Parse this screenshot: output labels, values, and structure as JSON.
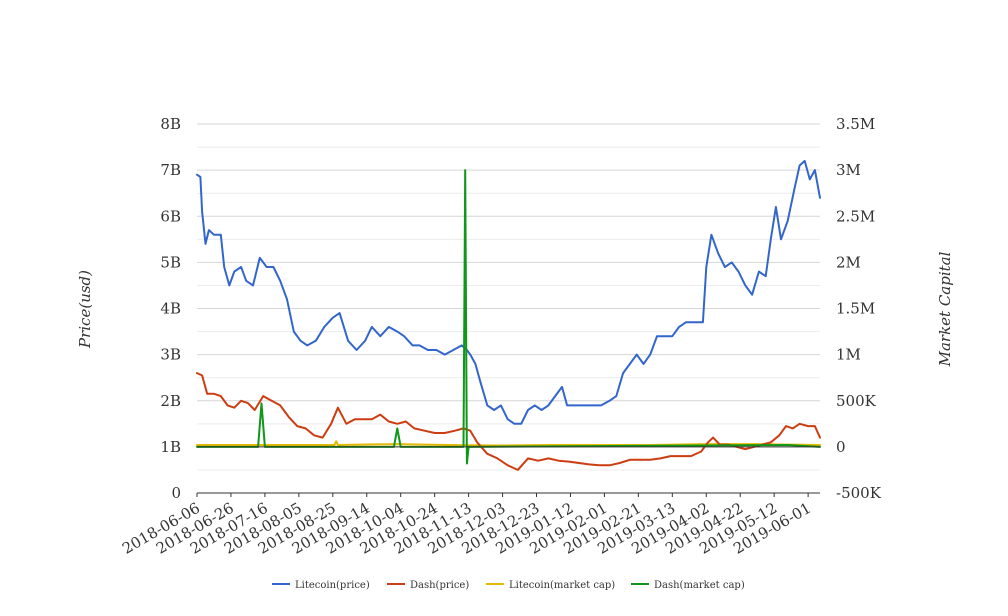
{
  "chart_data": {
    "type": "line",
    "title": "",
    "ylabel_left": "Price(usd)",
    "ylabel_right": "Market Capital",
    "left_axis": {
      "ticks": [
        "0",
        "1B",
        "2B",
        "3B",
        "4B",
        "5B",
        "6B",
        "7B",
        "8B"
      ],
      "tick_values": [
        0,
        1000000000.0,
        2000000000.0,
        3000000000.0,
        4000000000.0,
        5000000000.0,
        6000000000.0,
        7000000000.0,
        8000000000.0
      ],
      "range": [
        0,
        8000000000
      ]
    },
    "right_axis": {
      "ticks": [
        "-500K",
        "0",
        "500K",
        "1M",
        "1.5M",
        "2M",
        "2.5M",
        "3M",
        "3.5M"
      ],
      "tick_values": [
        -500000,
        0,
        500000,
        1000000,
        1500000,
        2000000,
        2500000,
        3000000,
        3500000
      ],
      "range": [
        -500000,
        3500000
      ]
    },
    "x_tick_labels": [
      "2018-06-06",
      "2018-06-26",
      "2018-07-16",
      "2018-08-05",
      "2018-08-25",
      "2018-09-14",
      "2018-10-04",
      "2018-10-24",
      "2018-11-13",
      "2018-12-03",
      "2018-12-23",
      "2019-01-12",
      "2019-02-01",
      "2019-02-21",
      "2019-03-13",
      "2019-04-02",
      "2019-04-22",
      "2019-05-12",
      "2019-06-01"
    ],
    "x_range": [
      "2018-06-06",
      "2019-06-08"
    ],
    "grid": true,
    "legend_position": "bottom",
    "series": [
      {
        "name": "Litecoin(price)",
        "axis": "left",
        "color": "#3366cc",
        "points": [
          [
            "2018-06-06",
            6900000000.0
          ],
          [
            "2018-06-08",
            6850000000.0
          ],
          [
            "2018-06-09",
            6100000000.0
          ],
          [
            "2018-06-11",
            5400000000.0
          ],
          [
            "2018-06-13",
            5700000000.0
          ],
          [
            "2018-06-16",
            5600000000.0
          ],
          [
            "2018-06-20",
            5600000000.0
          ],
          [
            "2018-06-22",
            4900000000.0
          ],
          [
            "2018-06-25",
            4500000000.0
          ],
          [
            "2018-06-28",
            4800000000.0
          ],
          [
            "2018-07-02",
            4900000000.0
          ],
          [
            "2018-07-05",
            4600000000.0
          ],
          [
            "2018-07-09",
            4500000000.0
          ],
          [
            "2018-07-13",
            5100000000.0
          ],
          [
            "2018-07-17",
            4900000000.0
          ],
          [
            "2018-07-21",
            4900000000.0
          ],
          [
            "2018-07-25",
            4600000000.0
          ],
          [
            "2018-07-29",
            4200000000.0
          ],
          [
            "2018-08-02",
            3500000000.0
          ],
          [
            "2018-08-06",
            3300000000.0
          ],
          [
            "2018-08-10",
            3200000000.0
          ],
          [
            "2018-08-15",
            3300000000.0
          ],
          [
            "2018-08-20",
            3600000000.0
          ],
          [
            "2018-08-25",
            3800000000.0
          ],
          [
            "2018-08-29",
            3900000000.0
          ],
          [
            "2018-09-03",
            3300000000.0
          ],
          [
            "2018-09-08",
            3100000000.0
          ],
          [
            "2018-09-13",
            3300000000.0
          ],
          [
            "2018-09-17",
            3600000000.0
          ],
          [
            "2018-09-22",
            3400000000.0
          ],
          [
            "2018-09-27",
            3600000000.0
          ],
          [
            "2018-10-02",
            3500000000.0
          ],
          [
            "2018-10-06",
            3400000000.0
          ],
          [
            "2018-10-11",
            3200000000.0
          ],
          [
            "2018-10-15",
            3200000000.0
          ],
          [
            "2018-10-20",
            3100000000.0
          ],
          [
            "2018-10-25",
            3100000000.0
          ],
          [
            "2018-10-30",
            3000000000.0
          ],
          [
            "2018-11-04",
            3100000000.0
          ],
          [
            "2018-11-09",
            3200000000.0
          ],
          [
            "2018-11-12",
            3100000000.0
          ],
          [
            "2018-11-14",
            3000000000.0
          ],
          [
            "2018-11-17",
            2800000000.0
          ],
          [
            "2018-11-20",
            2400000000.0
          ],
          [
            "2018-11-24",
            1900000000.0
          ],
          [
            "2018-11-28",
            1800000000.0
          ],
          [
            "2018-12-02",
            1900000000.0
          ],
          [
            "2018-12-06",
            1600000000.0
          ],
          [
            "2018-12-10",
            1500000000.0
          ],
          [
            "2018-12-14",
            1500000000.0
          ],
          [
            "2018-12-18",
            1800000000.0
          ],
          [
            "2018-12-22",
            1900000000.0
          ],
          [
            "2018-12-26",
            1800000000.0
          ],
          [
            "2018-12-30",
            1900000000.0
          ],
          [
            "2019-01-03",
            2100000000.0
          ],
          [
            "2019-01-07",
            2300000000.0
          ],
          [
            "2019-01-10",
            1900000000.0
          ],
          [
            "2019-01-15",
            1900000000.0
          ],
          [
            "2019-01-20",
            1900000000.0
          ],
          [
            "2019-01-25",
            1900000000.0
          ],
          [
            "2019-01-30",
            1900000000.0
          ],
          [
            "2019-02-04",
            2000000000.0
          ],
          [
            "2019-02-08",
            2100000000.0
          ],
          [
            "2019-02-12",
            2600000000.0
          ],
          [
            "2019-02-16",
            2800000000.0
          ],
          [
            "2019-02-20",
            3000000000.0
          ],
          [
            "2019-02-24",
            2800000000.0
          ],
          [
            "2019-02-28",
            3000000000.0
          ],
          [
            "2019-03-04",
            3400000000.0
          ],
          [
            "2019-03-09",
            3400000000.0
          ],
          [
            "2019-03-13",
            3400000000.0
          ],
          [
            "2019-03-17",
            3600000000.0
          ],
          [
            "2019-03-21",
            3700000000.0
          ],
          [
            "2019-03-26",
            3700000000.0
          ],
          [
            "2019-03-31",
            3700000000.0
          ],
          [
            "2019-04-02",
            4900000000.0
          ],
          [
            "2019-04-05",
            5600000000.0
          ],
          [
            "2019-04-09",
            5200000000.0
          ],
          [
            "2019-04-13",
            4900000000.0
          ],
          [
            "2019-04-17",
            5000000000.0
          ],
          [
            "2019-04-21",
            4800000000.0
          ],
          [
            "2019-04-25",
            4500000000.0
          ],
          [
            "2019-04-29",
            4300000000.0
          ],
          [
            "2019-05-03",
            4800000000.0
          ],
          [
            "2019-05-07",
            4700000000.0
          ],
          [
            "2019-05-10",
            5500000000.0
          ],
          [
            "2019-05-13",
            6200000000.0
          ],
          [
            "2019-05-16",
            5500000000.0
          ],
          [
            "2019-05-20",
            5900000000.0
          ],
          [
            "2019-05-24",
            6600000000.0
          ],
          [
            "2019-05-27",
            7100000000.0
          ],
          [
            "2019-05-30",
            7200000000.0
          ],
          [
            "2019-06-02",
            6800000000.0
          ],
          [
            "2019-06-05",
            7000000000.0
          ],
          [
            "2019-06-08",
            6400000000.0
          ]
        ]
      },
      {
        "name": "Dash(price)",
        "axis": "left",
        "color": "#cc3d12",
        "points": [
          [
            "2018-06-06",
            2600000000.0
          ],
          [
            "2018-06-09",
            2550000000.0
          ],
          [
            "2018-06-12",
            2150000000.0
          ],
          [
            "2018-06-16",
            2150000000.0
          ],
          [
            "2018-06-20",
            2100000000.0
          ],
          [
            "2018-06-24",
            1900000000.0
          ],
          [
            "2018-06-28",
            1850000000.0
          ],
          [
            "2018-07-02",
            2000000000.0
          ],
          [
            "2018-07-06",
            1950000000.0
          ],
          [
            "2018-07-10",
            1800000000.0
          ],
          [
            "2018-07-15",
            2100000000.0
          ],
          [
            "2018-07-20",
            2000000000.0
          ],
          [
            "2018-07-25",
            1900000000.0
          ],
          [
            "2018-07-30",
            1650000000.0
          ],
          [
            "2018-08-04",
            1450000000.0
          ],
          [
            "2018-08-09",
            1400000000.0
          ],
          [
            "2018-08-14",
            1250000000.0
          ],
          [
            "2018-08-19",
            1200000000.0
          ],
          [
            "2018-08-24",
            1500000000.0
          ],
          [
            "2018-08-28",
            1850000000.0
          ],
          [
            "2018-09-02",
            1500000000.0
          ],
          [
            "2018-09-07",
            1600000000.0
          ],
          [
            "2018-09-12",
            1600000000.0
          ],
          [
            "2018-09-17",
            1600000000.0
          ],
          [
            "2018-09-22",
            1700000000.0
          ],
          [
            "2018-09-27",
            1550000000.0
          ],
          [
            "2018-10-02",
            1500000000.0
          ],
          [
            "2018-10-07",
            1550000000.0
          ],
          [
            "2018-10-12",
            1400000000.0
          ],
          [
            "2018-10-18",
            1350000000.0
          ],
          [
            "2018-10-24",
            1300000000.0
          ],
          [
            "2018-10-30",
            1300000000.0
          ],
          [
            "2018-11-05",
            1350000000.0
          ],
          [
            "2018-11-10",
            1400000000.0
          ],
          [
            "2018-11-14",
            1350000000.0
          ],
          [
            "2018-11-18",
            1100000000.0
          ],
          [
            "2018-11-24",
            850000000.0
          ],
          [
            "2018-11-30",
            750000000.0
          ],
          [
            "2018-12-06",
            600000000.0
          ],
          [
            "2018-12-12",
            500000000.0
          ],
          [
            "2018-12-18",
            750000000.0
          ],
          [
            "2018-12-24",
            700000000.0
          ],
          [
            "2018-12-30",
            750000000.0
          ],
          [
            "2019-01-05",
            700000000.0
          ],
          [
            "2019-01-11",
            680000000.0
          ],
          [
            "2019-01-17",
            650000000.0
          ],
          [
            "2019-01-23",
            620000000.0
          ],
          [
            "2019-01-29",
            600000000.0
          ],
          [
            "2019-02-04",
            600000000.0
          ],
          [
            "2019-02-10",
            650000000.0
          ],
          [
            "2019-02-16",
            720000000.0
          ],
          [
            "2019-02-22",
            720000000.0
          ],
          [
            "2019-02-28",
            720000000.0
          ],
          [
            "2019-03-06",
            750000000.0
          ],
          [
            "2019-03-12",
            800000000.0
          ],
          [
            "2019-03-18",
            800000000.0
          ],
          [
            "2019-03-24",
            800000000.0
          ],
          [
            "2019-03-30",
            900000000.0
          ],
          [
            "2019-04-03",
            1100000000.0
          ],
          [
            "2019-04-06",
            1200000000.0
          ],
          [
            "2019-04-10",
            1050000000.0
          ],
          [
            "2019-04-15",
            1050000000.0
          ],
          [
            "2019-04-20",
            1000000000.0
          ],
          [
            "2019-04-25",
            950000000.0
          ],
          [
            "2019-04-30",
            1000000000.0
          ],
          [
            "2019-05-05",
            1050000000.0
          ],
          [
            "2019-05-10",
            1100000000.0
          ],
          [
            "2019-05-15",
            1250000000.0
          ],
          [
            "2019-05-19",
            1450000000.0
          ],
          [
            "2019-05-23",
            1400000000.0
          ],
          [
            "2019-05-27",
            1500000000.0
          ],
          [
            "2019-06-01",
            1450000000.0
          ],
          [
            "2019-06-05",
            1450000000.0
          ],
          [
            "2019-06-08",
            1200000000.0
          ]
        ]
      },
      {
        "name": "Litecoin(market cap)",
        "axis": "right",
        "color": "#e6b800",
        "points": [
          [
            "2018-06-06",
            20000
          ],
          [
            "2018-07-01",
            20000
          ],
          [
            "2018-08-01",
            20000
          ],
          [
            "2018-08-26",
            20000
          ],
          [
            "2018-08-27",
            60000
          ],
          [
            "2018-08-28",
            20000
          ],
          [
            "2018-10-01",
            30000
          ],
          [
            "2018-11-01",
            20000
          ],
          [
            "2018-12-01",
            15000
          ],
          [
            "2019-01-01",
            20000
          ],
          [
            "2019-02-01",
            20000
          ],
          [
            "2019-03-01",
            20000
          ],
          [
            "2019-04-01",
            30000
          ],
          [
            "2019-05-01",
            30000
          ],
          [
            "2019-06-08",
            20000
          ]
        ]
      },
      {
        "name": "Dash(market cap)",
        "axis": "right",
        "color": "#109618",
        "points": [
          [
            "2018-06-06",
            0
          ],
          [
            "2018-07-12",
            0
          ],
          [
            "2018-07-14",
            470000
          ],
          [
            "2018-07-16",
            0
          ],
          [
            "2018-09-30",
            0
          ],
          [
            "2018-10-02",
            200000
          ],
          [
            "2018-10-04",
            0
          ],
          [
            "2018-11-10",
            0
          ],
          [
            "2018-11-11",
            3000000
          ],
          [
            "2018-11-12",
            -180000
          ],
          [
            "2018-11-13",
            0
          ],
          [
            "2019-05-20",
            20000
          ],
          [
            "2019-06-08",
            0
          ]
        ]
      }
    ]
  }
}
